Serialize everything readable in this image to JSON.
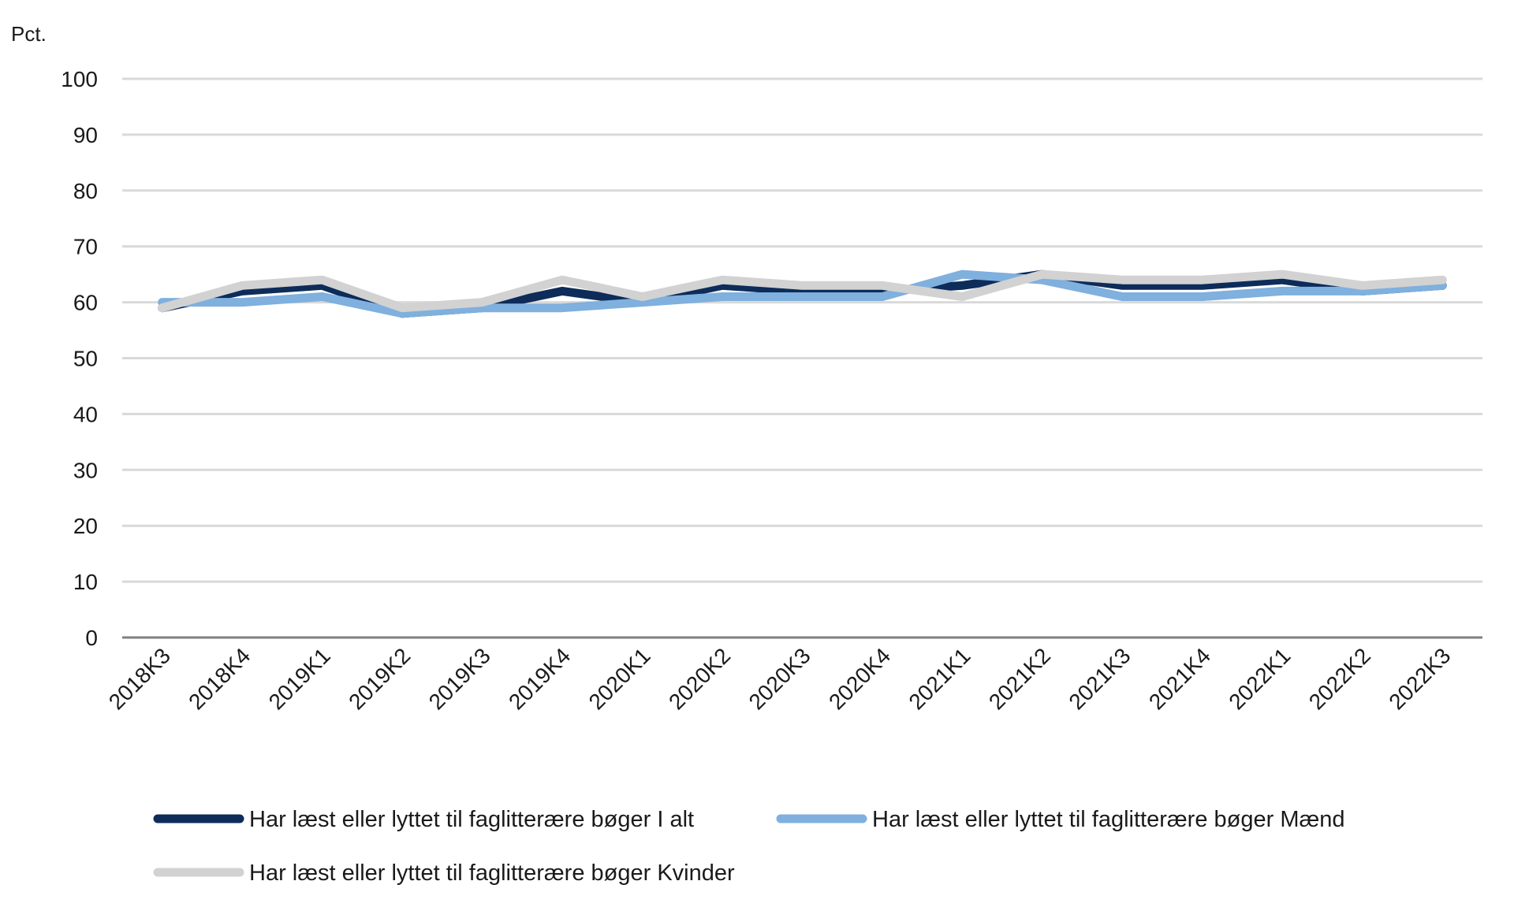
{
  "chart_data": {
    "type": "line",
    "ylabel": "Pct.",
    "ylim": [
      0,
      100
    ],
    "yticks": [
      0,
      10,
      20,
      30,
      40,
      50,
      60,
      70,
      80,
      90,
      100
    ],
    "grid": true,
    "legend_position": "bottom",
    "categories": [
      "2018K3",
      "2018K4",
      "2019K1",
      "2019K2",
      "2019K3",
      "2019K4",
      "2020K1",
      "2020K2",
      "2020K3",
      "2020K4",
      "2021K1",
      "2021K2",
      "2021K3",
      "2021K4",
      "2022K1",
      "2022K2",
      "2022K3"
    ],
    "series": [
      {
        "name": "Har læst eller lyttet til faglitterære bøger I alt",
        "color": "#0d2c5a",
        "values": [
          59,
          62,
          63,
          58,
          59,
          62,
          60,
          63,
          62,
          62,
          63,
          65,
          63,
          63,
          64,
          62,
          63
        ]
      },
      {
        "name": "Har læst eller lyttet til faglitterære bøger Mænd",
        "color": "#7fb0de",
        "values": [
          60,
          60,
          61,
          58,
          59,
          59,
          60,
          61,
          61,
          61,
          65,
          64,
          61,
          61,
          62,
          62,
          63
        ]
      },
      {
        "name": "Har læst eller lyttet til faglitterære bøger Kvinder",
        "color": "#d2d2d2",
        "values": [
          59,
          63,
          64,
          59,
          60,
          64,
          61,
          64,
          63,
          63,
          61,
          65,
          64,
          64,
          65,
          63,
          64
        ]
      }
    ]
  }
}
